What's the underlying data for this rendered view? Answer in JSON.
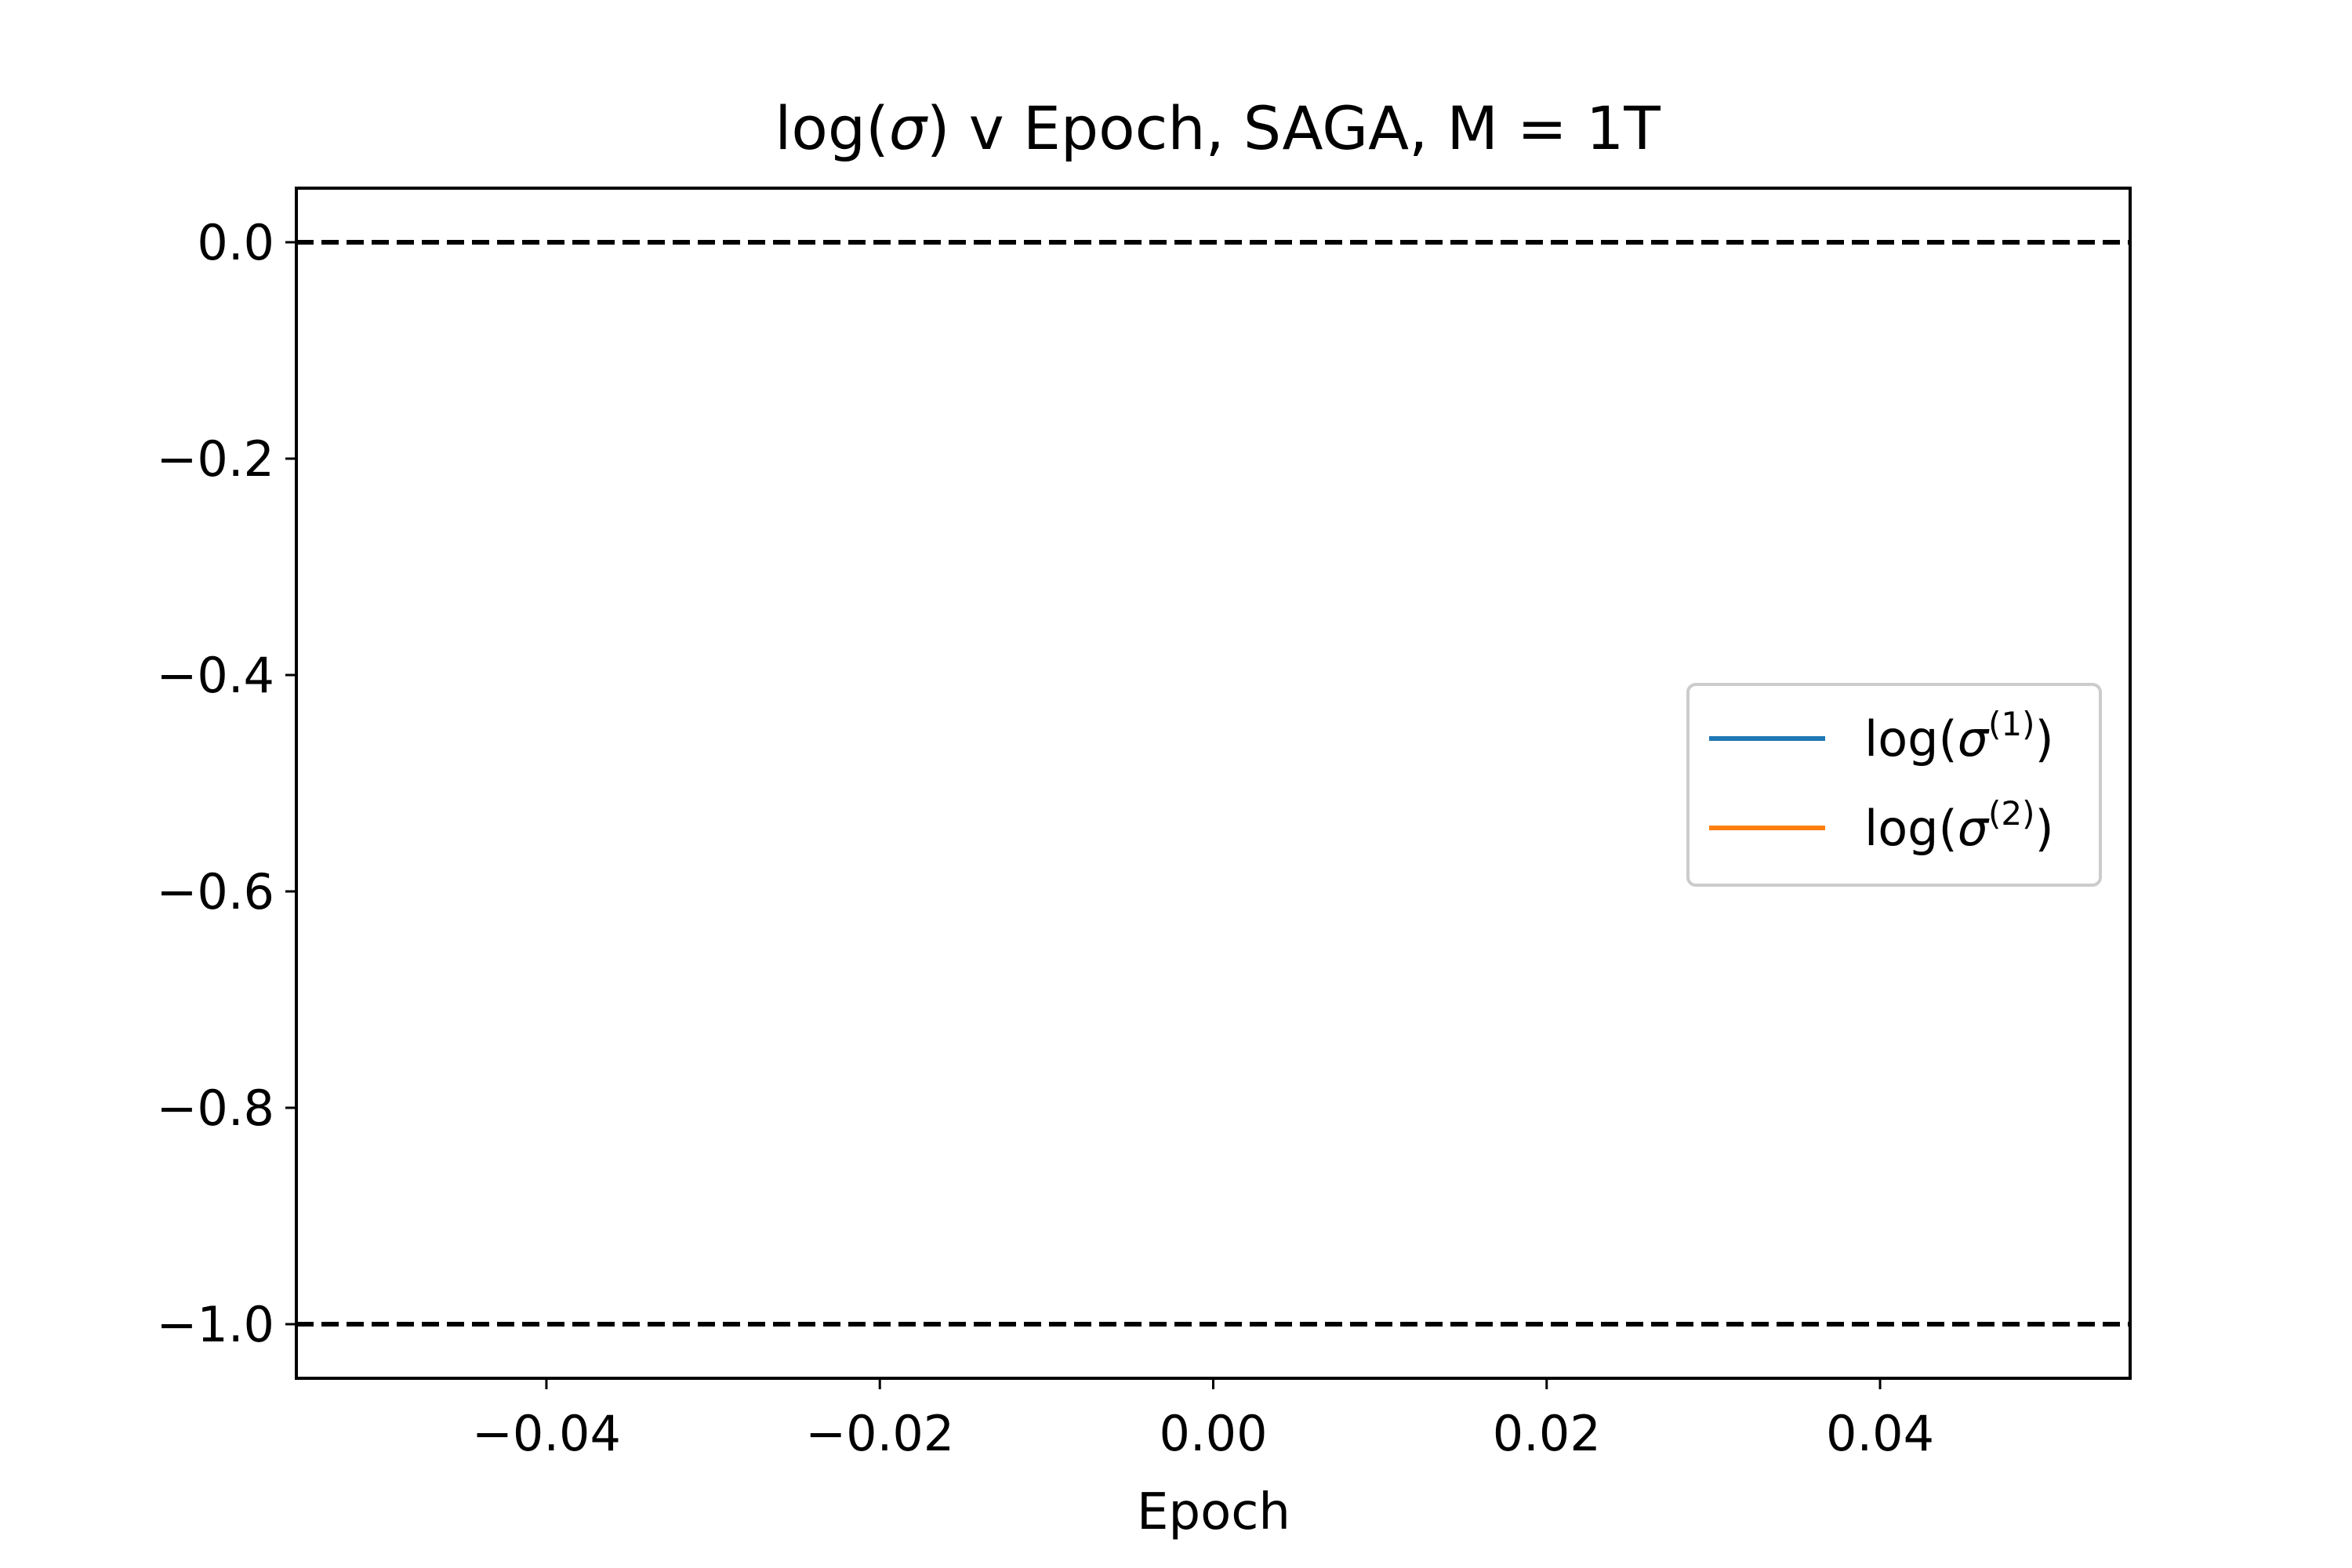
{
  "chart_data": {
    "type": "line",
    "title": {
      "pre": "log(",
      "sym": "σ",
      "post": ") v Epoch, SAGA, M = 1T"
    },
    "xlabel": "Epoch",
    "ylabel": "",
    "xlim": [
      -0.055,
      0.055
    ],
    "ylim": [
      -1.05,
      0.05
    ],
    "xticks": [
      -0.04,
      -0.02,
      0.0,
      0.02,
      0.04
    ],
    "xtick_labels": [
      "−0.04",
      "−0.02",
      "0.00",
      "0.02",
      "0.04"
    ],
    "yticks": [
      0.0,
      -0.2,
      -0.4,
      -0.6,
      -0.8,
      -1.0
    ],
    "ytick_labels": [
      "0.0",
      "−0.2",
      "−0.4",
      "−0.6",
      "−0.8",
      "−1.0"
    ],
    "grid": false,
    "legend_position": "center-right",
    "series": [
      {
        "label": {
          "pre": "log(",
          "sym": "σ",
          "sup": "(1)",
          "post": ")"
        },
        "color": "#1f77b4",
        "x": [],
        "y": []
      },
      {
        "label": {
          "pre": "log(",
          "sym": "σ",
          "sup": "(2)",
          "post": ")"
        },
        "color": "#ff7f0e",
        "x": [],
        "y": []
      }
    ],
    "reference_lines": [
      {
        "orientation": "horizontal",
        "y": 0.0,
        "style": "dashed",
        "color": "#000000"
      },
      {
        "orientation": "horizontal",
        "y": -1.0,
        "style": "dashed",
        "color": "#000000"
      }
    ]
  }
}
